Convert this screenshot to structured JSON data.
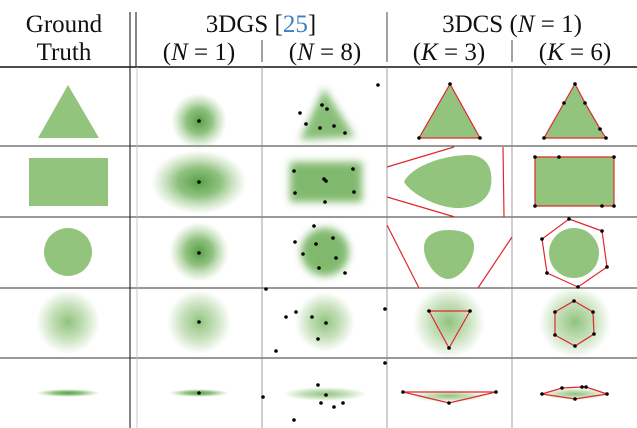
{
  "header": {
    "ground_truth": [
      "Ground",
      "Truth"
    ],
    "method_a": {
      "name": "3DGS",
      "citation": "25",
      "sub": [
        {
          "var": "N",
          "val": "1"
        },
        {
          "var": "N",
          "val": "8"
        }
      ]
    },
    "method_b": {
      "name": "3DCS",
      "param": {
        "var": "N",
        "val": "1"
      },
      "sub": [
        {
          "var": "K",
          "val": "3"
        },
        {
          "var": "K",
          "val": "6"
        }
      ]
    }
  },
  "rows": [
    "triangle",
    "rectangle",
    "circle",
    "soft-blob",
    "thin-ellipse"
  ],
  "colors": {
    "shape_fill": "#93c47d",
    "gaussian_core": "#4e9a3c",
    "polygon_edge": "#e0282e",
    "points": "#000000",
    "citation": "#3b7fc4"
  }
}
